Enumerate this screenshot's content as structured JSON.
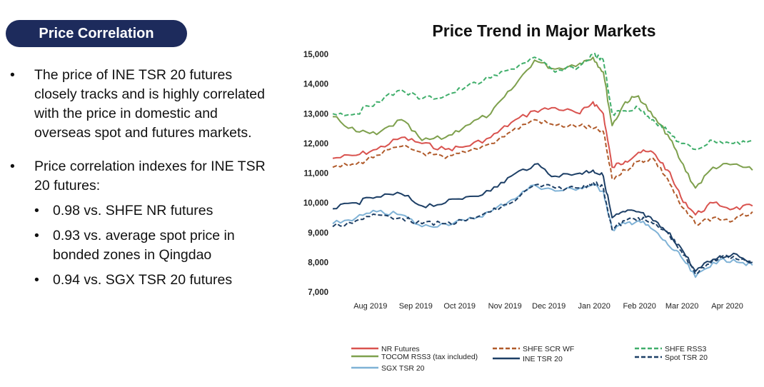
{
  "header": {
    "title": "Price Correlation"
  },
  "bullets": {
    "first": "The price of INE TSR 20 futures closely tracks and is highly correlated with the price in domestic and overseas spot and futures markets.",
    "second": "Price correlation indexes for INE TSR 20 futures:",
    "sub": [
      "0.98 vs. SHFE NR futures",
      "0.93 vs. average spot price in bonded zones in Qingdao",
      "0.94 vs. SGX TSR 20 futures"
    ],
    "dot": "•"
  },
  "chart_data": {
    "type": "line",
    "title": "Price Trend in Major Markets",
    "xlabel": "",
    "ylabel": "",
    "ylim": [
      7000,
      15000
    ],
    "yticks": [
      "15,000",
      "14,000",
      "13,000",
      "12,000",
      "11,000",
      "10,000",
      "9,000",
      "8,000",
      "7,000"
    ],
    "yticks_values": [
      15000,
      14000,
      13000,
      12000,
      11000,
      10000,
      9000,
      8000,
      7000
    ],
    "xticks": [
      "Aug 2019",
      "Sep 2019",
      "Oct 2019",
      "Nov 2019",
      "Dec 2019",
      "Jan 2020",
      "Feb 2020",
      "Mar 2020",
      "Apr 2020"
    ],
    "xticks_dates": [
      "2019-08-01",
      "2019-09-01",
      "2019-10-01",
      "2019-11-01",
      "2019-12-01",
      "2020-01-01",
      "2020-02-01",
      "2020-03-01",
      "2020-04-01"
    ],
    "grid": false,
    "legend_position": "bottom",
    "series": [
      {
        "name": "NR Futures",
        "color": "#d9534f",
        "style": "solid",
        "x": [
          "2019-07-16",
          "2019-08-01",
          "2019-08-15",
          "2019-09-01",
          "2019-09-15",
          "2019-10-01",
          "2019-10-15",
          "2019-11-01",
          "2019-11-15",
          "2019-12-01",
          "2019-12-15",
          "2020-01-01",
          "2020-01-10",
          "2020-01-17",
          "2020-01-23",
          "2020-02-01",
          "2020-02-10",
          "2020-02-20",
          "2020-03-01",
          "2020-03-10",
          "2020-03-20",
          "2020-04-01",
          "2020-04-15",
          "2020-04-28"
        ],
        "values": [
          11500,
          11600,
          11800,
          12200,
          12000,
          11800,
          11900,
          12200,
          12700,
          13100,
          13200,
          13000,
          13400,
          13000,
          11200,
          11400,
          11700,
          11700,
          11100,
          10200,
          9600,
          10000,
          9800,
          9900
        ]
      },
      {
        "name": "TOCOM RSS3 (tax included)",
        "color": "#7ea04d",
        "style": "solid",
        "x": [
          "2019-07-16",
          "2019-08-01",
          "2019-08-15",
          "2019-09-01",
          "2019-09-15",
          "2019-10-01",
          "2019-10-15",
          "2019-11-01",
          "2019-11-15",
          "2019-12-01",
          "2019-12-15",
          "2020-01-01",
          "2020-01-10",
          "2020-01-17",
          "2020-01-23",
          "2020-02-01",
          "2020-02-10",
          "2020-02-20",
          "2020-03-01",
          "2020-03-10",
          "2020-03-20",
          "2020-04-01",
          "2020-04-15",
          "2020-04-28"
        ],
        "values": [
          12900,
          12400,
          12300,
          12800,
          12100,
          12200,
          12600,
          13000,
          13800,
          14800,
          14500,
          14700,
          14900,
          14400,
          12600,
          13400,
          13600,
          12900,
          12300,
          11400,
          10500,
          11200,
          11300,
          11100
        ]
      },
      {
        "name": "SGX TSR 20",
        "color": "#7fb2d6",
        "style": "solid",
        "x": [
          "2019-07-16",
          "2019-08-01",
          "2019-08-15",
          "2019-09-01",
          "2019-09-15",
          "2019-10-01",
          "2019-10-15",
          "2019-11-01",
          "2019-11-15",
          "2019-12-01",
          "2019-12-15",
          "2020-01-01",
          "2020-01-10",
          "2020-01-17",
          "2020-01-23",
          "2020-02-01",
          "2020-02-10",
          "2020-02-20",
          "2020-03-01",
          "2020-03-10",
          "2020-03-20",
          "2020-04-01",
          "2020-04-15",
          "2020-04-28"
        ],
        "values": [
          9300,
          9500,
          9700,
          9600,
          9200,
          9300,
          9400,
          9700,
          10100,
          10600,
          10400,
          10500,
          10600,
          10400,
          9100,
          9300,
          9400,
          9100,
          8600,
          8200,
          7500,
          8000,
          8100,
          7900
        ]
      },
      {
        "name": "SHFE SCR WF",
        "color": "#b05a2a",
        "style": "dashed",
        "x": [
          "2019-07-16",
          "2019-08-01",
          "2019-08-15",
          "2019-09-01",
          "2019-09-15",
          "2019-10-01",
          "2019-10-15",
          "2019-11-01",
          "2019-11-15",
          "2019-12-01",
          "2019-12-15",
          "2020-01-01",
          "2020-01-10",
          "2020-01-17",
          "2020-01-23",
          "2020-02-01",
          "2020-02-10",
          "2020-02-20",
          "2020-03-01",
          "2020-03-10",
          "2020-03-20",
          "2020-04-01",
          "2020-04-15",
          "2020-04-28"
        ],
        "values": [
          11200,
          11300,
          11600,
          11900,
          11700,
          11500,
          11700,
          12000,
          12400,
          12800,
          12600,
          12600,
          12500,
          12400,
          10800,
          11100,
          11400,
          11500,
          10800,
          9900,
          9300,
          9500,
          9400,
          9700
        ]
      },
      {
        "name": "INE TSR 20",
        "color": "#1d3f66",
        "style": "solid",
        "x": [
          "2019-07-16",
          "2019-08-01",
          "2019-08-15",
          "2019-09-01",
          "2019-09-15",
          "2019-10-01",
          "2019-10-15",
          "2019-11-01",
          "2019-11-15",
          "2019-12-01",
          "2019-12-15",
          "2020-01-01",
          "2020-01-10",
          "2020-01-17",
          "2020-01-23",
          "2020-02-01",
          "2020-02-10",
          "2020-02-20",
          "2020-03-01",
          "2020-03-10",
          "2020-03-20",
          "2020-04-01",
          "2020-04-15",
          "2020-04-28"
        ],
        "values": [
          9800,
          10000,
          10200,
          10300,
          9900,
          10000,
          10200,
          10400,
          10900,
          11300,
          10900,
          11000,
          11100,
          10900,
          9500,
          9700,
          9700,
          9400,
          9000,
          8500,
          7700,
          8100,
          8300,
          8000
        ]
      },
      {
        "name": "SHFE RSS3",
        "color": "#3fae6a",
        "style": "dashed",
        "x": [
          "2019-07-16",
          "2019-08-01",
          "2019-08-15",
          "2019-09-01",
          "2019-09-15",
          "2019-10-01",
          "2019-10-15",
          "2019-11-01",
          "2019-11-15",
          "2019-12-01",
          "2019-12-15",
          "2020-01-01",
          "2020-01-10",
          "2020-01-17",
          "2020-01-23",
          "2020-02-01",
          "2020-02-10",
          "2020-02-20",
          "2020-03-01",
          "2020-03-10",
          "2020-03-20",
          "2020-04-01",
          "2020-04-15",
          "2020-04-28"
        ],
        "values": [
          13000,
          13000,
          13400,
          13800,
          13500,
          13600,
          13900,
          14200,
          14500,
          14900,
          14400,
          14600,
          15000,
          14800,
          13000,
          13100,
          13200,
          12800,
          12400,
          12000,
          11800,
          12100,
          12000,
          12100
        ]
      },
      {
        "name": "Spot TSR 20",
        "color": "#1d3f66",
        "style": "dashed",
        "x": [
          "2019-07-16",
          "2019-08-01",
          "2019-08-15",
          "2019-09-01",
          "2019-09-15",
          "2019-10-01",
          "2019-10-15",
          "2019-11-01",
          "2019-11-15",
          "2019-12-01",
          "2019-12-15",
          "2020-01-01",
          "2020-01-10",
          "2020-01-17",
          "2020-01-23",
          "2020-02-01",
          "2020-02-10",
          "2020-02-20",
          "2020-03-01",
          "2020-03-10",
          "2020-03-20",
          "2020-04-01",
          "2020-04-15",
          "2020-04-28"
        ],
        "values": [
          9200,
          9400,
          9600,
          9500,
          9300,
          9300,
          9400,
          9700,
          10000,
          10600,
          10500,
          10500,
          10700,
          10500,
          9100,
          9400,
          9500,
          9300,
          9000,
          8400,
          7600,
          8100,
          8200,
          8000
        ]
      }
    ]
  }
}
